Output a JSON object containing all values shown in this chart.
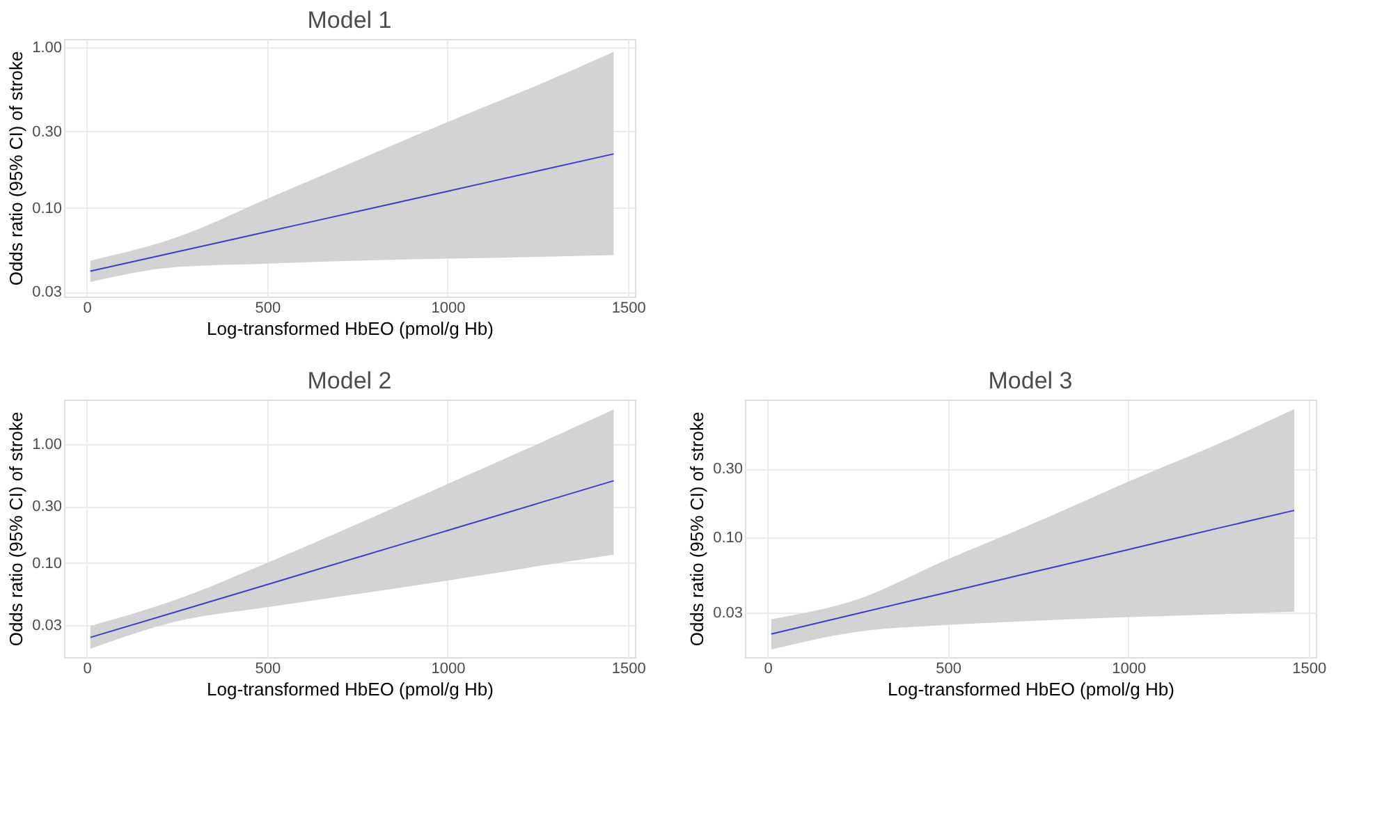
{
  "chart_data": [
    {
      "type": "line",
      "title": "Model 1",
      "xlabel": "Log-transformed HbEO (pmol/g Hb)",
      "ylabel": "Odds ratio (95% CI) of stroke",
      "log": "y",
      "grid": true,
      "marker": "none",
      "line_style": "solid",
      "x": [
        10,
        250,
        500,
        750,
        1000,
        1250,
        1460
      ],
      "series": [
        {
          "color": "#3b3bd6",
          "values": [
            0.0403,
            0.0532,
            0.0711,
            0.095,
            0.127,
            0.17,
            0.217
          ],
          "lower": [
            0.0345,
            0.0428,
            0.0449,
            0.0469,
            0.0483,
            0.0495,
            0.0508
          ],
          "upper": [
            0.0469,
            0.0656,
            0.114,
            0.198,
            0.343,
            0.583,
            0.94
          ]
        }
      ],
      "xlim": [
        -63,
        1519
      ],
      "xticks": [
        0,
        500,
        1000,
        1500
      ],
      "ylim": [
        0.028,
        1.13
      ],
      "yticks": [
        {
          "value": 0.03,
          "label": "0.03"
        },
        {
          "value": 0.1,
          "label": "0.10"
        },
        {
          "value": 0.3,
          "label": "0.30"
        },
        {
          "value": 1,
          "label": "1.00"
        }
      ]
    },
    {
      "type": "line",
      "title": "Model 2",
      "xlabel": "Log-transformed HbEO (pmol/g Hb)",
      "ylabel": "Odds ratio (95% CI) of stroke",
      "log": "y",
      "grid": true,
      "marker": "none",
      "line_style": "solid",
      "x": [
        10,
        250,
        500,
        750,
        1000,
        1250,
        1460
      ],
      "series": [
        {
          "color": "#3b3bd6",
          "values": [
            0.0236,
            0.0389,
            0.0656,
            0.111,
            0.187,
            0.316,
            0.49
          ],
          "lower": [
            0.0189,
            0.0322,
            0.0423,
            0.0547,
            0.071,
            0.0937,
            0.117
          ],
          "upper": [
            0.0295,
            0.0493,
            0.1,
            0.212,
            0.46,
            1.0,
            1.95
          ]
        }
      ],
      "xlim": [
        -63,
        1519
      ],
      "xticks": [
        0,
        500,
        1000,
        1500
      ],
      "ylim": [
        0.0161,
        2.36
      ],
      "yticks": [
        {
          "value": 0.03,
          "label": "0.03"
        },
        {
          "value": 0.1,
          "label": "0.10"
        },
        {
          "value": 0.3,
          "label": "0.30"
        },
        {
          "value": 1,
          "label": "1.00"
        }
      ]
    },
    {
      "type": "line",
      "title": "Model 3",
      "xlabel": "Log-transformed HbEO (pmol/g Hb)",
      "ylabel": "Odds ratio (95% CI) of stroke",
      "log": "y",
      "grid": true,
      "marker": "none",
      "line_style": "solid",
      "x": [
        10,
        250,
        500,
        750,
        1000,
        1250,
        1460
      ],
      "series": [
        {
          "color": "#3b3bd6",
          "values": [
            0.0213,
            0.0296,
            0.0416,
            0.0585,
            0.0822,
            0.116,
            0.154
          ],
          "lower": [
            0.0166,
            0.0221,
            0.0246,
            0.0264,
            0.0279,
            0.0292,
            0.0304
          ],
          "upper": [
            0.027,
            0.0372,
            0.0705,
            0.129,
            0.244,
            0.447,
            0.778
          ]
        }
      ],
      "xlim": [
        -63,
        1520
      ],
      "xticks": [
        0,
        500,
        1000,
        1500
      ],
      "ylim": [
        0.0147,
        0.908
      ],
      "yticks": [
        {
          "value": 0.03,
          "label": "0.03"
        },
        {
          "value": 0.1,
          "label": "0.10"
        },
        {
          "value": 0.3,
          "label": "0.30"
        }
      ]
    }
  ]
}
